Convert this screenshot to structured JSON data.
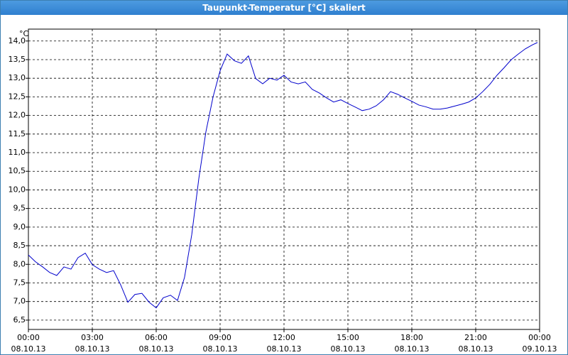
{
  "chart_data": {
    "type": "line",
    "title": "Taupunkt-Temperatur [°C] skaliert",
    "y_unit": "°C",
    "x": [
      0,
      0.33,
      0.67,
      1,
      1.33,
      1.67,
      2,
      2.33,
      2.67,
      3,
      3.33,
      3.67,
      4,
      4.33,
      4.67,
      5,
      5.33,
      5.67,
      6,
      6.33,
      6.67,
      7,
      7.33,
      7.67,
      8,
      8.33,
      8.67,
      9,
      9.33,
      9.67,
      10,
      10.33,
      10.67,
      11,
      11.33,
      11.67,
      12,
      12.33,
      12.67,
      13,
      13.33,
      13.67,
      14,
      14.33,
      14.67,
      15,
      15.33,
      15.67,
      16,
      16.33,
      16.67,
      17,
      17.33,
      17.67,
      18,
      18.33,
      18.67,
      19,
      19.33,
      19.67,
      20,
      20.33,
      20.67,
      21,
      21.33,
      21.67,
      22,
      22.33,
      22.67,
      23,
      23.33,
      23.67,
      23.9
    ],
    "series": [
      {
        "name": "Taupunkt-Temperatur",
        "color": "#0000cc",
        "values": [
          8.25,
          8.07,
          7.93,
          7.78,
          7.7,
          7.93,
          7.87,
          8.18,
          8.3,
          7.99,
          7.87,
          7.78,
          7.83,
          7.45,
          6.98,
          7.19,
          7.22,
          6.98,
          6.83,
          7.1,
          7.17,
          7.03,
          7.65,
          8.8,
          10.3,
          11.55,
          12.5,
          13.2,
          13.65,
          13.47,
          13.4,
          13.6,
          12.99,
          12.85,
          13.0,
          12.95,
          13.08,
          12.9,
          12.85,
          12.9,
          12.7,
          12.6,
          12.47,
          12.36,
          12.42,
          12.32,
          12.23,
          12.13,
          12.17,
          12.26,
          12.42,
          12.64,
          12.57,
          12.47,
          12.38,
          12.28,
          12.23,
          12.17,
          12.17,
          12.2,
          12.25,
          12.3,
          12.36,
          12.47,
          12.64,
          12.84,
          13.08,
          13.28,
          13.5,
          13.65,
          13.79,
          13.9,
          13.96
        ]
      }
    ],
    "xlim": [
      0,
      24
    ],
    "xticks": [
      {
        "value": 0,
        "label": "00:00"
      },
      {
        "value": 3,
        "label": "03:00"
      },
      {
        "value": 6,
        "label": "06:00"
      },
      {
        "value": 9,
        "label": "09:00"
      },
      {
        "value": 12,
        "label": "12:00"
      },
      {
        "value": 15,
        "label": "15:00"
      },
      {
        "value": 18,
        "label": "18:00"
      },
      {
        "value": 21,
        "label": "21:00"
      },
      {
        "value": 24,
        "label": "00:00"
      }
    ],
    "xtick_dates": [
      "08.10.13",
      "08.10.13",
      "08.10.13",
      "08.10.13",
      "08.10.13",
      "08.10.13",
      "08.10.13",
      "08.10.13",
      "09.10.13"
    ],
    "ylim": [
      6.25,
      14.32
    ],
    "yticks": [
      {
        "value": 6.5,
        "label": "6,5"
      },
      {
        "value": 7,
        "label": "7,0"
      },
      {
        "value": 7.5,
        "label": "7,5"
      },
      {
        "value": 8,
        "label": "8,0"
      },
      {
        "value": 8.5,
        "label": "8,5"
      },
      {
        "value": 9,
        "label": "9,0"
      },
      {
        "value": 9.5,
        "label": "9,5"
      },
      {
        "value": 10,
        "label": "10,0"
      },
      {
        "value": 10.5,
        "label": "10,5"
      },
      {
        "value": 11,
        "label": "11,0"
      },
      {
        "value": 11.5,
        "label": "11,5"
      },
      {
        "value": 12,
        "label": "12,0"
      },
      {
        "value": 12.5,
        "label": "12,5"
      },
      {
        "value": 13,
        "label": "13,0"
      },
      {
        "value": 13.5,
        "label": "13,5"
      },
      {
        "value": 14,
        "label": "14,0"
      }
    ],
    "grid": true
  }
}
